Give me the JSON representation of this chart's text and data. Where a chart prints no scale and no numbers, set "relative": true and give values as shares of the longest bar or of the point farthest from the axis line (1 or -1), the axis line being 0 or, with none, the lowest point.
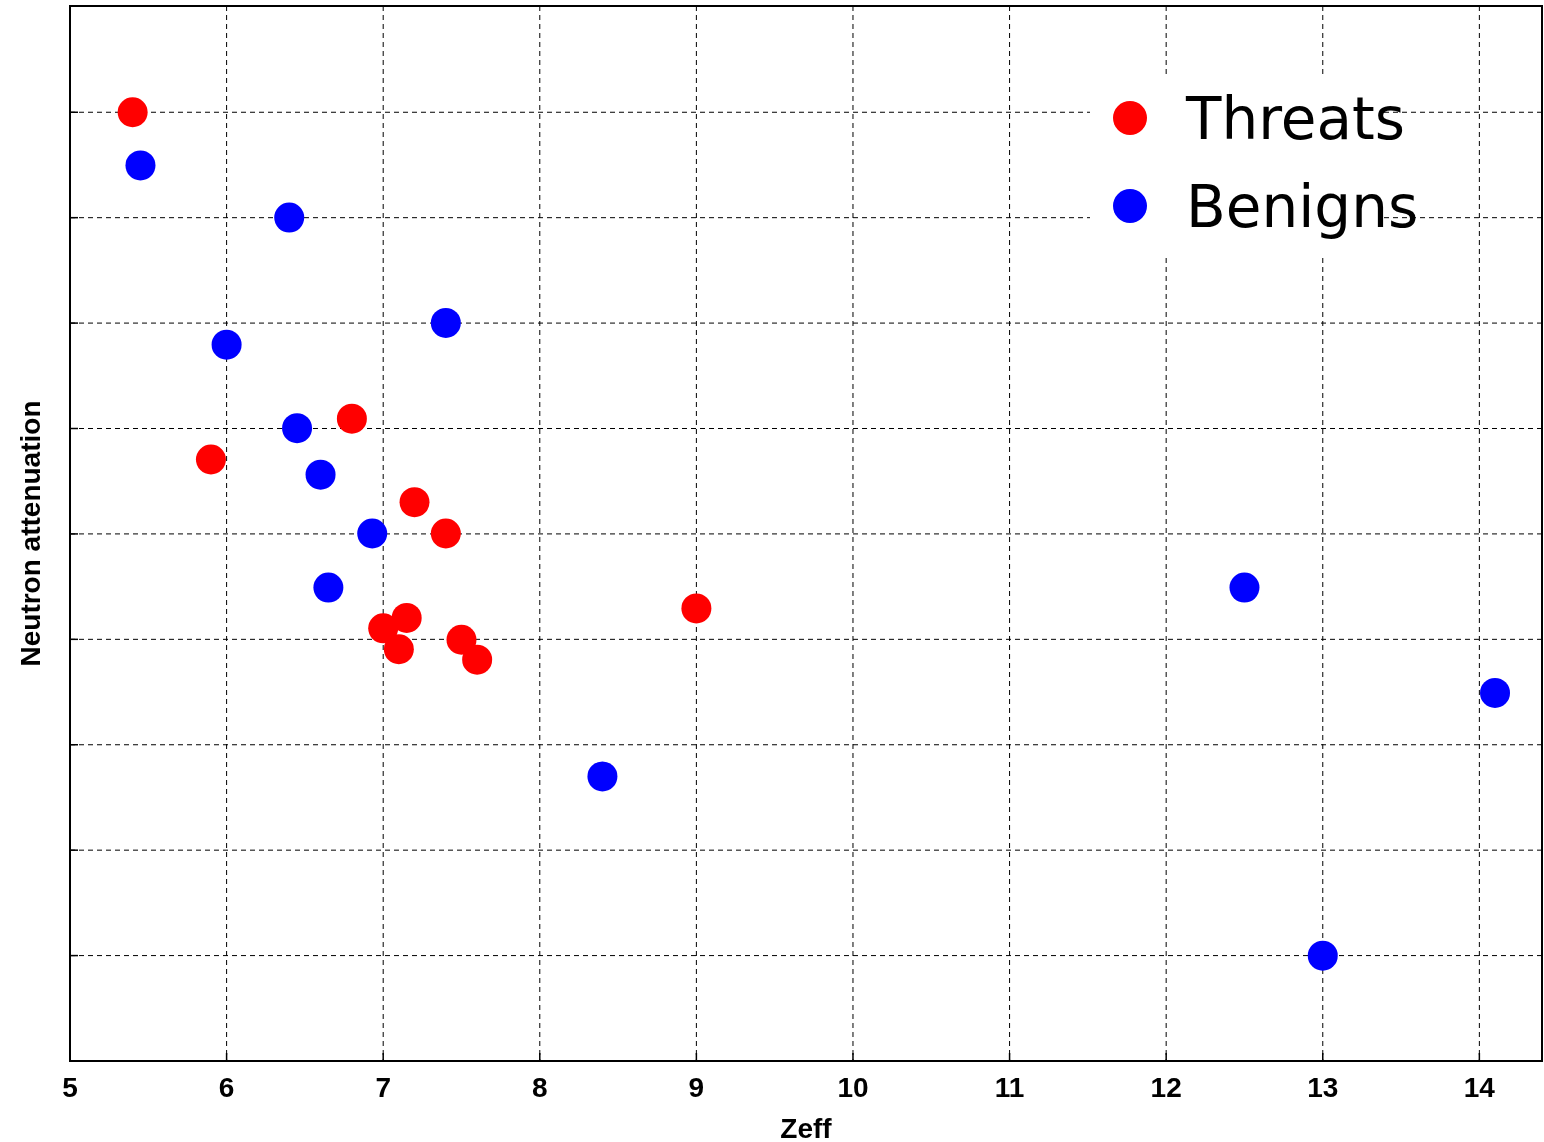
{
  "chart_data": {
    "type": "scatter",
    "xlabel": "Zeff",
    "ylabel": "Neutron attenuation",
    "relative": true,
    "xlim": [
      5,
      14.4
    ],
    "xticks": [
      5,
      6,
      7,
      8,
      9,
      10,
      11,
      12,
      13,
      14
    ],
    "grid": true,
    "legend": "top right",
    "marker": "circle",
    "series": [
      {
        "name": "Threats",
        "color": "#ff0000",
        "x": [
          5.4,
          5.9,
          6.8,
          7.2,
          7.4,
          9.0,
          7.0,
          7.15,
          7.1,
          7.5,
          7.6
        ],
        "values": [
          1,
          0.634,
          0.677,
          0.589,
          0.556,
          0.477,
          0.456,
          0.467,
          0.434,
          0.444,
          0.423
        ]
      },
      {
        "name": "Benigns",
        "color": "#0000ff",
        "x": [
          5.45,
          6.4,
          7.4,
          6.0,
          6.45,
          6.6,
          6.93,
          6.65,
          8.4,
          12.5,
          14.1,
          13.0
        ],
        "values": [
          0.944,
          0.889,
          0.778,
          0.755,
          0.667,
          0.618,
          0.556,
          0.499,
          0.3,
          0.499,
          0.388,
          0.111
        ]
      }
    ]
  }
}
